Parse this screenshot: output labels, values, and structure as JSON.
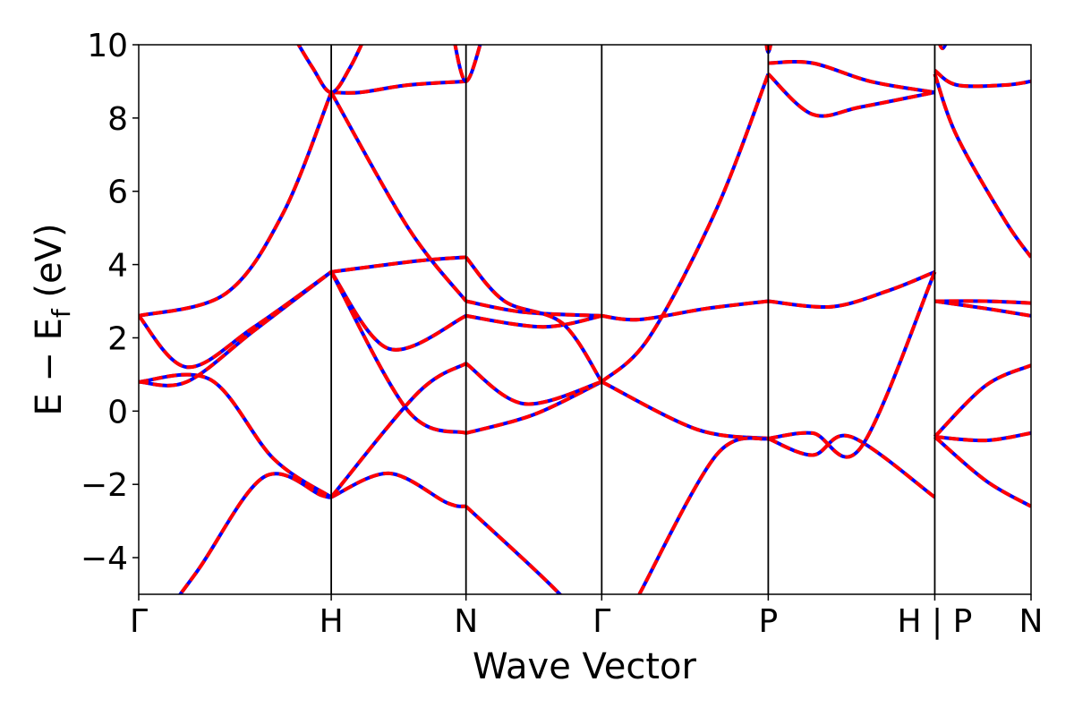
{
  "chart_data": {
    "type": "line",
    "xlabel": "Wave Vector",
    "ylabel_main": "E − E",
    "ylabel_sub": "f",
    "ylabel_unit": " (eV)",
    "ylim": [
      -5,
      10
    ],
    "yticks": [
      {
        "value": 10,
        "label": "10"
      },
      {
        "value": 8,
        "label": "8"
      },
      {
        "value": 6,
        "label": "6"
      },
      {
        "value": 4,
        "label": "4"
      },
      {
        "value": 2,
        "label": "2"
      },
      {
        "value": 0,
        "label": "0"
      },
      {
        "value": -2,
        "label": "−2"
      },
      {
        "value": -4,
        "label": "−4"
      }
    ],
    "xlim": [
      0,
      9.27
    ],
    "kpoints": [
      {
        "k": 0,
        "label": "Γ"
      },
      {
        "k": 2.0,
        "label": "H"
      },
      {
        "k": 3.4,
        "label": "N"
      },
      {
        "k": 4.81,
        "label": "Γ"
      },
      {
        "k": 6.54,
        "label": "P"
      },
      {
        "k": 8.27,
        "label": "H | P"
      },
      {
        "k": 9.27,
        "label": "N"
      }
    ],
    "series_colors": {
      "overlay": "#ff0000",
      "underlay": "#0000ff"
    },
    "bands": [
      {
        "x": [
          0,
          0.6,
          1.3,
          1.9,
          2.0
        ],
        "y": [
          -6.5,
          -4.4,
          -1.8,
          -2.3,
          -2.35
        ]
      },
      {
        "x": [
          2.0,
          2.6,
          3.2,
          3.4
        ],
        "y": [
          -2.35,
          -1.7,
          -2.5,
          -2.6
        ]
      },
      {
        "x": [
          3.4,
          4.3,
          4.9
        ],
        "y": [
          -2.6,
          -4.8,
          -6.5
        ]
      },
      {
        "x": [
          0,
          0.75,
          1.4,
          2.0
        ],
        "y": [
          0.8,
          0.85,
          -1.3,
          -2.35
        ]
      },
      {
        "x": [
          0,
          0.5,
          1.2,
          2.0
        ],
        "y": [
          0.8,
          0.8,
          2.2,
          3.8
        ]
      },
      {
        "x": [
          0,
          0.9,
          1.5,
          2.0
        ],
        "y": [
          2.6,
          3.2,
          5.4,
          8.7
        ]
      },
      {
        "x": [
          0,
          0.5,
          1.2,
          2.0
        ],
        "y": [
          2.6,
          1.2,
          2.3,
          3.8
        ]
      },
      {
        "x": [
          2.0,
          2.9,
          3.4
        ],
        "y": [
          3.8,
          4.1,
          4.2
        ]
      },
      {
        "x": [
          2.0,
          2.3,
          2.8,
          3.4
        ],
        "y": [
          8.7,
          8.7,
          8.9,
          9.0
        ]
      },
      {
        "x": [
          1.55,
          1.8,
          2.0,
          2.2,
          2.4
        ],
        "y": [
          10.5,
          9.4,
          8.7,
          9.4,
          10.5
        ]
      },
      {
        "x": [
          2.0,
          2.8,
          3.4
        ],
        "y": [
          8.7,
          5.0,
          3.0
        ]
      },
      {
        "x": [
          3.25,
          3.4,
          3.6
        ],
        "y": [
          10.5,
          9.0,
          10.5
        ]
      },
      {
        "x": [
          2.0,
          2.6,
          3.4
        ],
        "y": [
          3.8,
          1.7,
          2.6
        ]
      },
      {
        "x": [
          2.0,
          2.9,
          3.4
        ],
        "y": [
          -2.35,
          0.5,
          1.3
        ]
      },
      {
        "x": [
          2.0,
          2.8,
          3.4
        ],
        "y": [
          3.8,
          0.0,
          -0.6
        ]
      },
      {
        "x": [
          3.4,
          4.1,
          4.81
        ],
        "y": [
          -0.6,
          -0.1,
          0.8
        ]
      },
      {
        "x": [
          3.4,
          4.0,
          4.81
        ],
        "y": [
          1.3,
          0.2,
          0.8
        ]
      },
      {
        "x": [
          3.4,
          4.2,
          4.81
        ],
        "y": [
          2.6,
          2.3,
          2.6
        ]
      },
      {
        "x": [
          3.4,
          4.0,
          4.81
        ],
        "y": [
          3.0,
          2.7,
          2.6
        ]
      },
      {
        "x": [
          3.4,
          3.8,
          4.4,
          4.81
        ],
        "y": [
          4.2,
          3.0,
          2.4,
          0.8
        ]
      },
      {
        "x": [
          4.81,
          5.3,
          6.0,
          6.54
        ],
        "y": [
          0.8,
          2.0,
          5.5,
          9.2
        ]
      },
      {
        "x": [
          4.81,
          5.8,
          6.54
        ],
        "y": [
          0.8,
          -0.5,
          -0.75
        ]
      },
      {
        "x": [
          5.2,
          6.0,
          6.54
        ],
        "y": [
          -5.0,
          -1.2,
          -0.75
        ]
      },
      {
        "x": [
          4.81,
          5.2,
          5.9,
          6.54
        ],
        "y": [
          2.6,
          2.5,
          2.8,
          3.0
        ]
      },
      {
        "x": [
          6.54,
          7.2,
          7.8,
          8.27
        ],
        "y": [
          3.0,
          2.85,
          3.3,
          3.8
        ]
      },
      {
        "x": [
          6.54,
          7.0,
          7.4,
          8.27
        ],
        "y": [
          -0.75,
          -1.2,
          -0.7,
          -2.35
        ]
      },
      {
        "x": [
          6.54,
          7.0,
          7.5,
          8.27
        ],
        "y": [
          -0.75,
          -0.6,
          -1.0,
          3.8
        ]
      },
      {
        "x": [
          6.54,
          7.0,
          7.5,
          8.27
        ],
        "y": [
          9.2,
          8.1,
          8.3,
          8.7
        ]
      },
      {
        "x": [
          6.54,
          7.0,
          7.6,
          8.27
        ],
        "y": [
          9.5,
          9.5,
          9.0,
          8.7
        ]
      },
      {
        "x": [
          6.5,
          6.54,
          6.6
        ],
        "y": [
          10.5,
          9.8,
          10.5
        ]
      },
      {
        "x": [
          8.27,
          8.5,
          9.0,
          9.27
        ],
        "y": [
          9.3,
          8.9,
          8.9,
          9.0
        ]
      },
      {
        "x": [
          8.27,
          8.5,
          9.0,
          9.27
        ],
        "y": [
          9.2,
          7.5,
          5.2,
          4.2
        ]
      },
      {
        "x": [
          8.27,
          8.8,
          9.27
        ],
        "y": [
          3.0,
          3.0,
          2.95
        ]
      },
      {
        "x": [
          8.27,
          8.8,
          9.27
        ],
        "y": [
          3.0,
          2.8,
          2.6
        ]
      },
      {
        "x": [
          8.27,
          8.8,
          9.27
        ],
        "y": [
          -0.7,
          0.7,
          1.25
        ]
      },
      {
        "x": [
          8.27,
          8.8,
          9.27
        ],
        "y": [
          -0.7,
          -0.8,
          -0.6
        ]
      },
      {
        "x": [
          8.27,
          8.8,
          9.27
        ],
        "y": [
          -0.7,
          -1.9,
          -2.6
        ]
      },
      {
        "x": [
          8.27,
          8.35,
          8.45
        ],
        "y": [
          10.5,
          9.9,
          10.5
        ]
      }
    ]
  }
}
